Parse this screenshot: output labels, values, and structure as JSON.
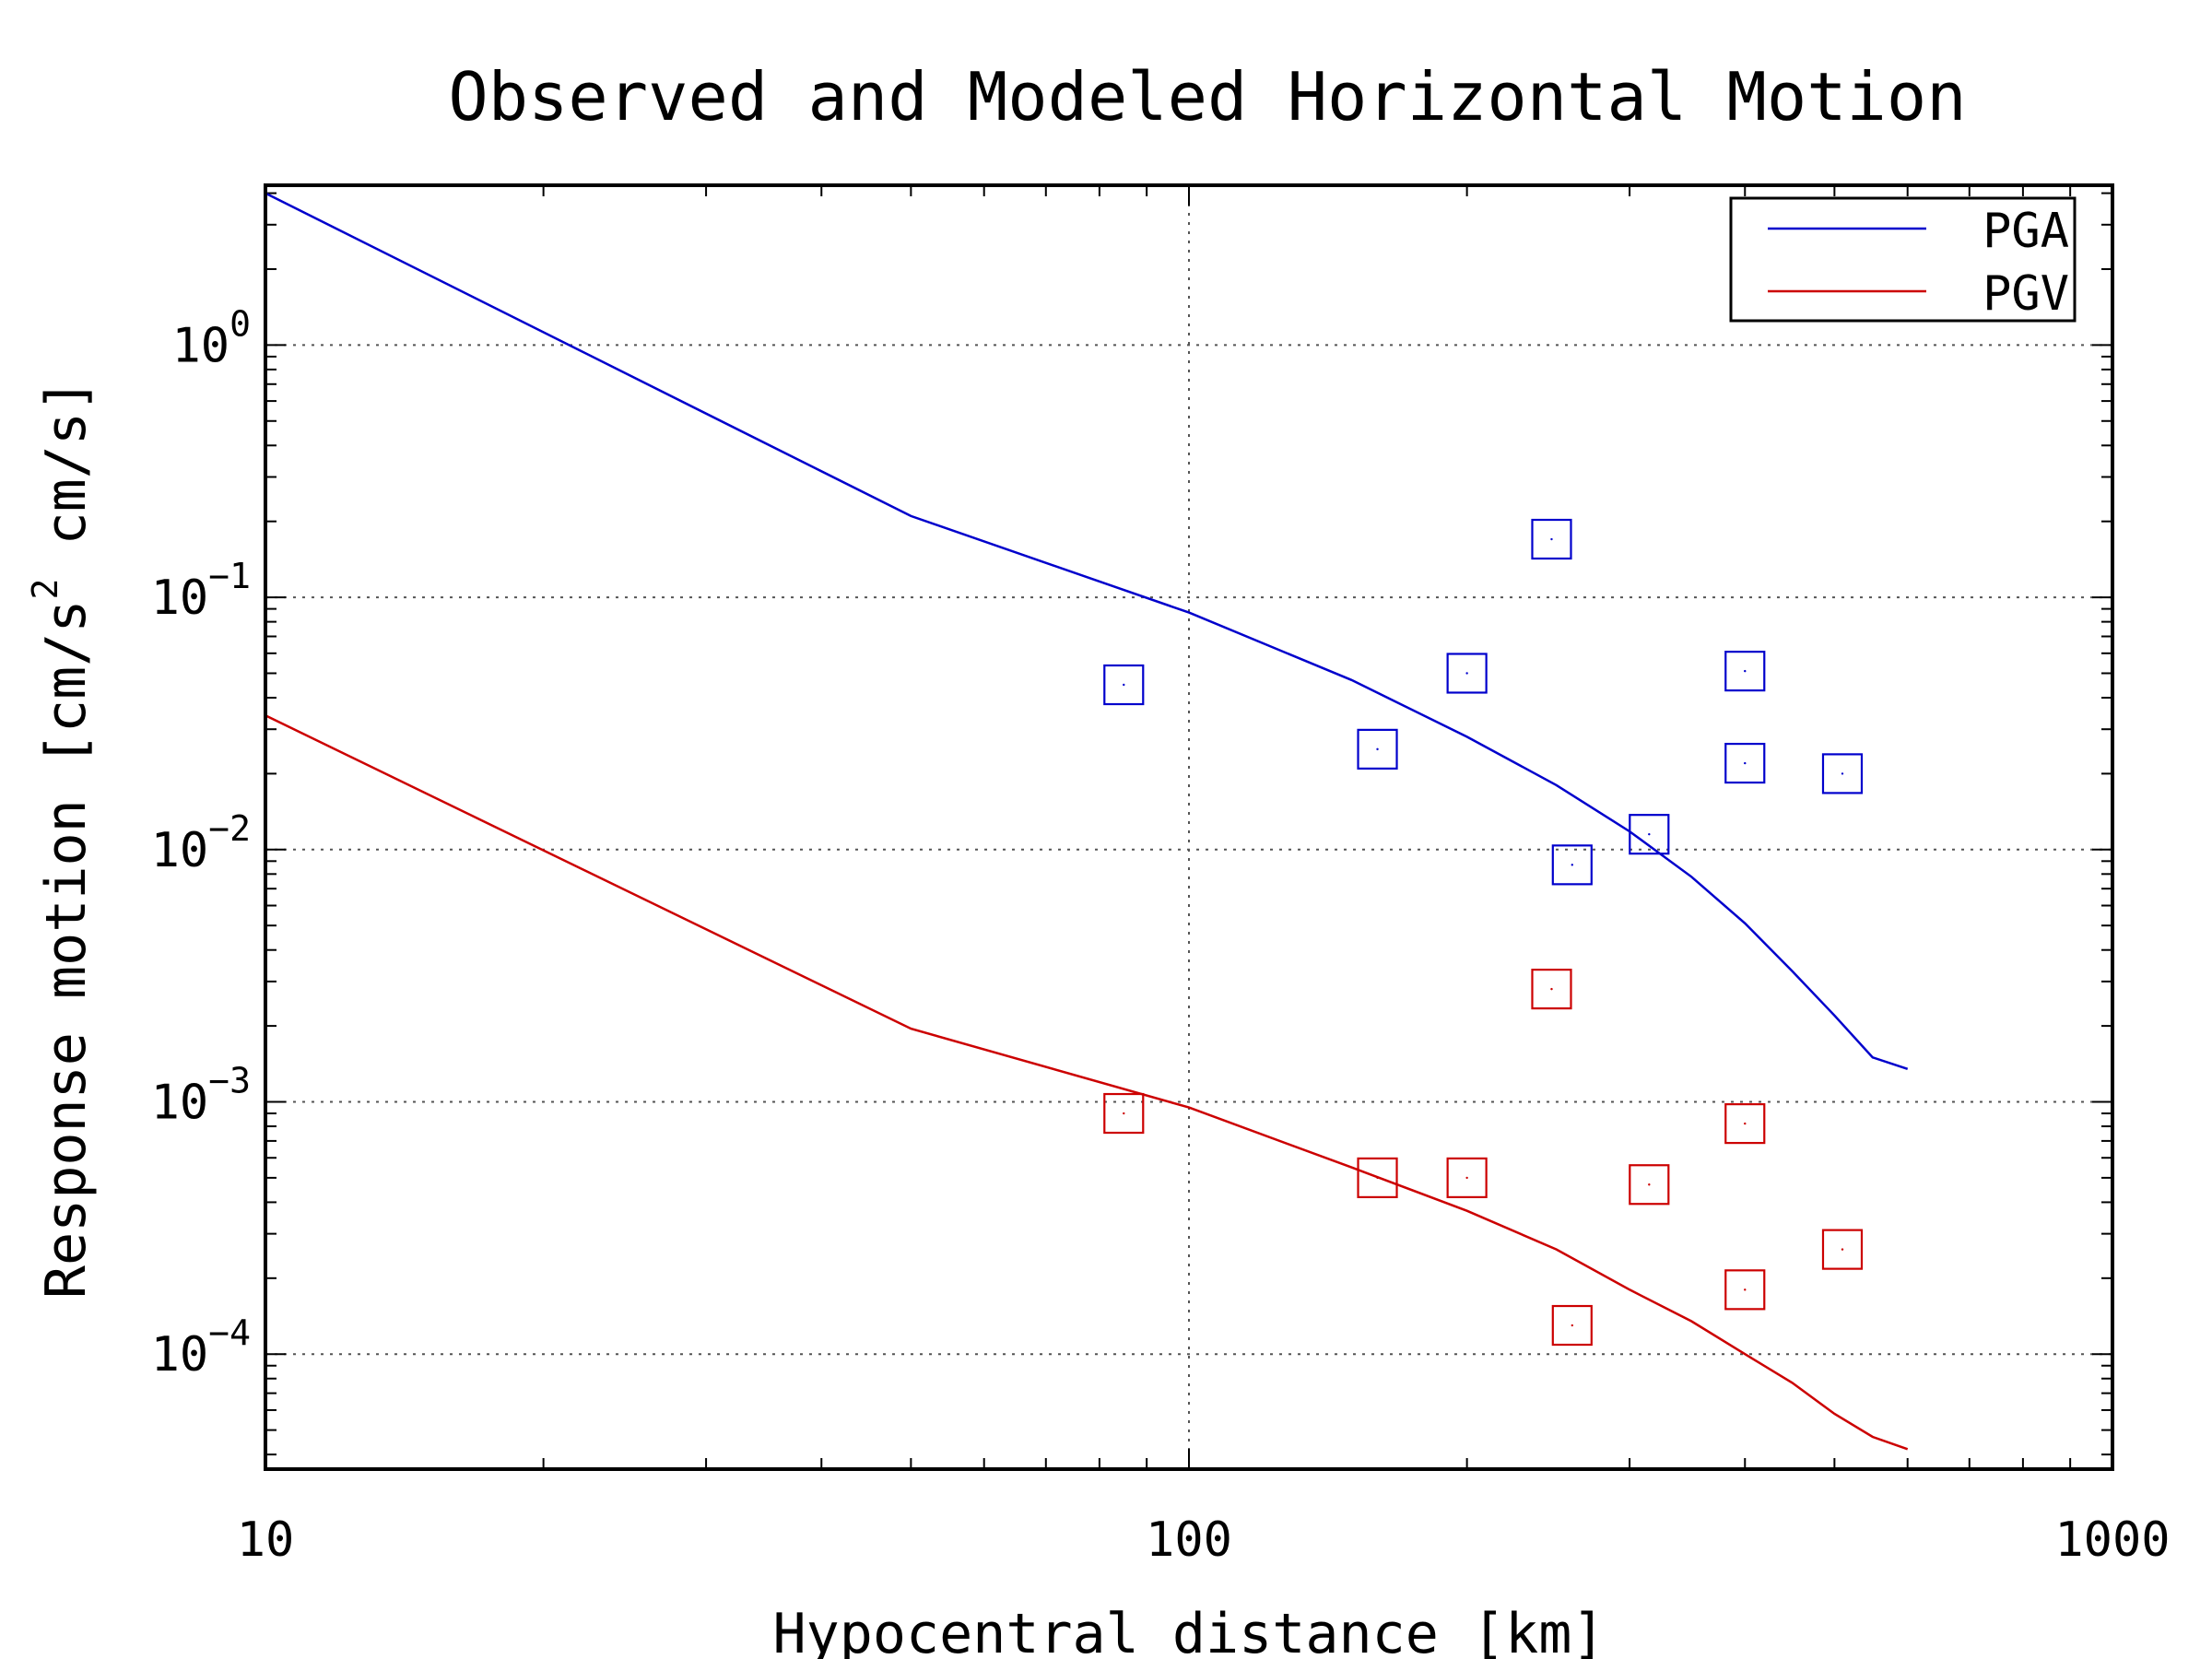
{
  "chart_data": {
    "type": "scatter",
    "title": "Observed and Modeled Horizontal Motion",
    "xlabel": "Hypocentral distance [km]",
    "ylabel": {
      "prefix": "Response motion  [cm/s",
      "sup": "2",
      "suffix": "  cm/s]"
    },
    "xscale": "log",
    "yscale": "log",
    "xlim": [
      10,
      1000
    ],
    "ylim": [
      3.5e-05,
      4.3
    ],
    "grid": true,
    "legend": {
      "placement": "top-right"
    },
    "x_ticks": [
      {
        "value": 10,
        "label": "10"
      },
      {
        "value": 100,
        "label": "100"
      },
      {
        "value": 1000,
        "label": "1000"
      }
    ],
    "y_ticks": [
      {
        "value": 1,
        "base": "10",
        "exp": "0"
      },
      {
        "value": 0.1,
        "base": "10",
        "exp": "−1"
      },
      {
        "value": 0.01,
        "base": "10",
        "exp": "−2"
      },
      {
        "value": 0.001,
        "base": "10",
        "exp": "−3"
      },
      {
        "value": 0.0001,
        "base": "10",
        "exp": "−4"
      }
    ],
    "series": [
      {
        "name": "PGA",
        "color": "#0000cc",
        "model": {
          "x": [
            10,
            50,
            100,
            150,
            200,
            250,
            300,
            350,
            400,
            450,
            500,
            550,
            600
          ],
          "y": [
            4.0,
            0.21,
            0.087,
            0.047,
            0.028,
            0.018,
            0.0118,
            0.0078,
            0.0051,
            0.0033,
            0.0022,
            0.0015,
            0.00135
          ]
        },
        "observed": {
          "x": [
            85,
            160,
            200,
            247,
            260,
            315,
            400,
            400,
            510
          ],
          "y": [
            0.045,
            0.025,
            0.05,
            0.17,
            0.0087,
            0.0115,
            0.051,
            0.022,
            0.02
          ]
        }
      },
      {
        "name": "PGV",
        "color": "#cc0000",
        "model": {
          "x": [
            10,
            50,
            100,
            150,
            200,
            250,
            300,
            350,
            400,
            450,
            500,
            550,
            600
          ],
          "y": [
            0.034,
            0.00195,
            0.00095,
            0.00055,
            0.00037,
            0.00026,
            0.00018,
            0.000135,
            0.0001,
            7.7e-05,
            5.8e-05,
            4.7e-05,
            4.2e-05
          ]
        },
        "observed": {
          "x": [
            85,
            160,
            200,
            247,
            260,
            315,
            400,
            400,
            510
          ],
          "y": [
            0.0009,
            0.0005,
            0.0005,
            0.0028,
            0.00013,
            0.00047,
            0.00082,
            0.00018,
            0.00026
          ]
        }
      }
    ]
  }
}
